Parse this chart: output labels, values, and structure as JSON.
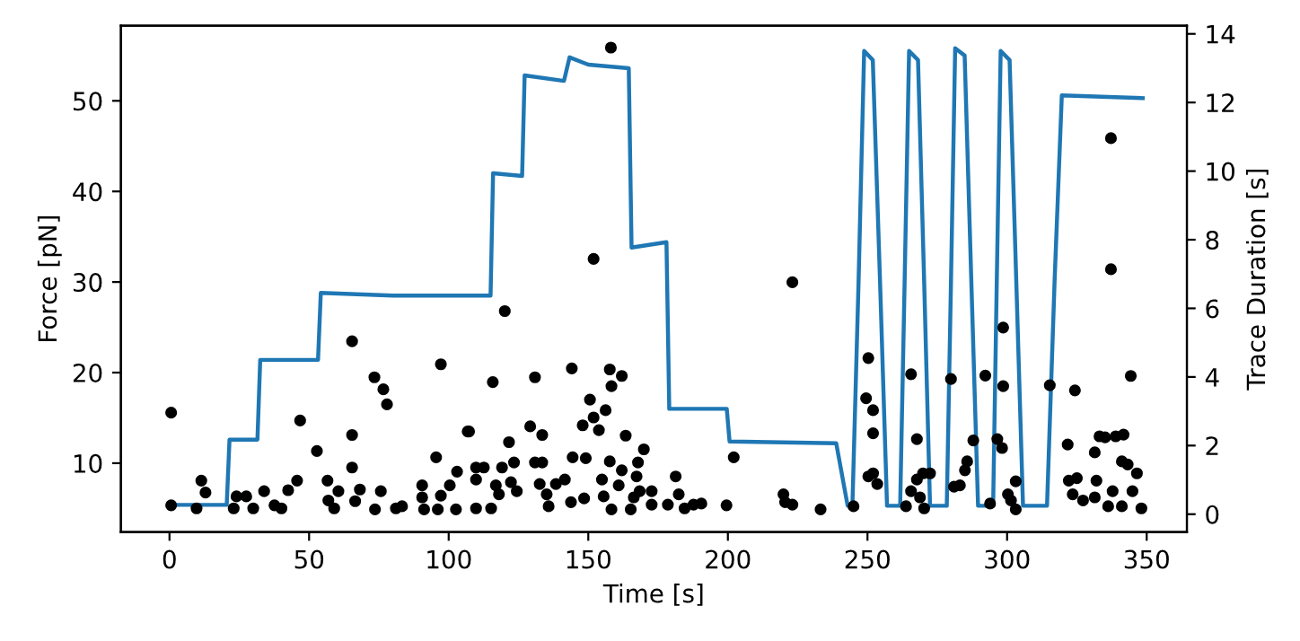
{
  "chart_data": {
    "type": "line",
    "xlabel": "Time [s]",
    "ylabel": "Force [pN]",
    "y2label": "Trace Duration [s]",
    "xlim": [
      -17.4,
      364.4
    ],
    "xticks": [
      0,
      50,
      100,
      150,
      200,
      250,
      300,
      350
    ],
    "ylim": [
      2.4,
      58.3
    ],
    "yticks": [
      10,
      20,
      30,
      40,
      50
    ],
    "y2lim": [
      -0.52,
      14.24
    ],
    "y2ticks": [
      0,
      2,
      4,
      6,
      8,
      10,
      12,
      14
    ],
    "grid": false,
    "legend": false,
    "series": [
      {
        "color": "#1f77b4",
        "marker": "none",
        "x": [
          2.2,
          20.5,
          21.5,
          31.5,
          32.5,
          53.2,
          54.2,
          80,
          115,
          115.9,
          126.3,
          127.2,
          141.3,
          143.3,
          150,
          164.5,
          165.5,
          178,
          179,
          199.6,
          200.6,
          238.8,
          242.9,
          244.6,
          246.8,
          248.8,
          251.9,
          254.5,
          257,
          261.7,
          263.3,
          264.9,
          268.1,
          270.3,
          272.4,
          278.4,
          279.9,
          281.4,
          284.8,
          287.2,
          289.6,
          295,
          296.3,
          297.7,
          300.9,
          303.3,
          305.7,
          314.3,
          317,
          319.6,
          348.6
        ],
        "values": [
          5.4,
          5.4,
          12.6,
          12.6,
          21.4,
          21.4,
          28.8,
          28.5,
          28.5,
          42.0,
          41.7,
          52.8,
          52.2,
          54.8,
          54.0,
          53.6,
          33.8,
          34.4,
          16.0,
          16.0,
          12.4,
          12.2,
          5.3,
          5.3,
          30,
          55.5,
          54.5,
          30,
          5.3,
          5.3,
          30,
          55.5,
          54.5,
          30,
          5.3,
          5.3,
          30,
          55.8,
          55.0,
          30,
          5.3,
          5.3,
          30,
          55.5,
          54.5,
          30,
          5.3,
          5.3,
          30,
          50.6,
          50.3
        ]
      },
      {
        "type": "scatter",
        "axis": "y2",
        "color": "#000000",
        "marker": "circle",
        "x": [
          0.6,
          0.6,
          9.7,
          11.4,
          12.9,
          23,
          24,
          27.5,
          30,
          33.9,
          37.6,
          40.1,
          42.5,
          45.7,
          46.8,
          52.8,
          56.6,
          56.9,
          59,
          60.5,
          65.4,
          65.4,
          65.4,
          66.5,
          68.2,
          73.6,
          73.4,
          76.6,
          77.9,
          75.7,
          81.1,
          83.3,
          90.5,
          90.5,
          91.2,
          95.5,
          96.1,
          97.2,
          97.2,
          100.4,
          102.6,
          103,
          106.8,
          107.3,
          109.8,
          109.8,
          112.6,
          109.8,
          115.2,
          115.8,
          116.9,
          118,
          119.1,
          120.1,
          121.6,
          122.3,
          123.4,
          124.4,
          129.2,
          130.9,
          130.9,
          133.5,
          133.5,
          132.6,
          135.1,
          135.8,
          138.4,
          141.6,
          143.8,
          144.1,
          144.4,
          148,
          148.5,
          149.1,
          150.6,
          151.9,
          151.9,
          153.8,
          154.9,
          155.5,
          156.2,
          157.7,
          158.1,
          158.3,
          157.7,
          158.3,
          160.9,
          162,
          162,
          163.4,
          165.2,
          166.3,
          167.3,
          167.8,
          168.4,
          169.9,
          172.7,
          172.7,
          178.5,
          181.3,
          182.4,
          184.5,
          187.7,
          190.5,
          199.5,
          202.1,
          219.9,
          220.5,
          223.1,
          223.1,
          233.2,
          245,
          250.3,
          249.5,
          252,
          252,
          250.3,
          252,
          253.5,
          263.8,
          265.6,
          265.6,
          267.7,
          267.7,
          268.8,
          270.3,
          269.9,
          272.4,
          279.9,
          281,
          283.1,
          284.9,
          285.7,
          287.9,
          292.2,
          293.9,
          296.5,
          298.2,
          298.6,
          298.6,
          300.3,
          301.4,
          303.1,
          303.1,
          315.3,
          321.7,
          322.1,
          323.5,
          324.3,
          325,
          327.2,
          331.4,
          332,
          331.4,
          333.1,
          335.1,
          336.2,
          337.2,
          337.2,
          337.8,
          338.9,
          341.1,
          341.1,
          341.7,
          343.2,
          344.3,
          344.9,
          346.5,
          348.1
        ],
        "values": [
          2.96,
          0.26,
          0.17,
          0.98,
          0.63,
          0.17,
          0.52,
          0.52,
          0.17,
          0.67,
          0.26,
          0.17,
          0.7,
          0.98,
          2.73,
          1.84,
          0.98,
          0.4,
          0.17,
          0.67,
          5.04,
          2.31,
          1.36,
          0.38,
          0.72,
          0.14,
          3.99,
          3.64,
          3.2,
          0.67,
          0.17,
          0.23,
          0.84,
          0.49,
          0.14,
          1.66,
          0.14,
          4.37,
          0.54,
          0.84,
          0.14,
          1.24,
          2.41,
          2.41,
          1.36,
          1.01,
          1.36,
          0.17,
          0.17,
          3.85,
          0.84,
          0.58,
          1.36,
          5.92,
          2.1,
          0.93,
          1.51,
          0.67,
          2.56,
          3.99,
          1.51,
          2.31,
          1.51,
          0.88,
          0.58,
          0.23,
          0.88,
          1.01,
          0.35,
          4.25,
          1.66,
          2.59,
          0.46,
          1.63,
          3.34,
          7.44,
          2.82,
          2.45,
          1.01,
          0.52,
          3.03,
          4.22,
          13.6,
          3.73,
          1.54,
          0.14,
          0.84,
          4.03,
          1.28,
          2.29,
          0.14,
          0.49,
          1.1,
          1.51,
          0.67,
          1.89,
          0.67,
          0.28,
          0.28,
          1.1,
          0.58,
          0.17,
          0.28,
          0.31,
          0.26,
          1.66,
          0.58,
          0.35,
          6.76,
          0.28,
          0.14,
          0.23,
          4.55,
          3.38,
          3.03,
          2.36,
          1.1,
          1.19,
          0.88,
          0.23,
          4.08,
          0.67,
          2.19,
          1.01,
          0.49,
          0.17,
          1.19,
          1.19,
          3.94,
          0.8,
          0.84,
          1.28,
          1.54,
          2.15,
          4.04,
          0.31,
          2.19,
          1.93,
          5.44,
          3.73,
          0.58,
          0.4,
          0.96,
          0.14,
          3.76,
          2.03,
          0.98,
          0.58,
          3.61,
          1.05,
          0.4,
          1.8,
          0.98,
          0.49,
          2.27,
          2.24,
          0.23,
          10.96,
          7.14,
          0.67,
          2.27,
          1.54,
          0.23,
          2.32,
          1.45,
          4.03,
          0.67,
          1.19,
          0.17
        ]
      }
    ]
  }
}
